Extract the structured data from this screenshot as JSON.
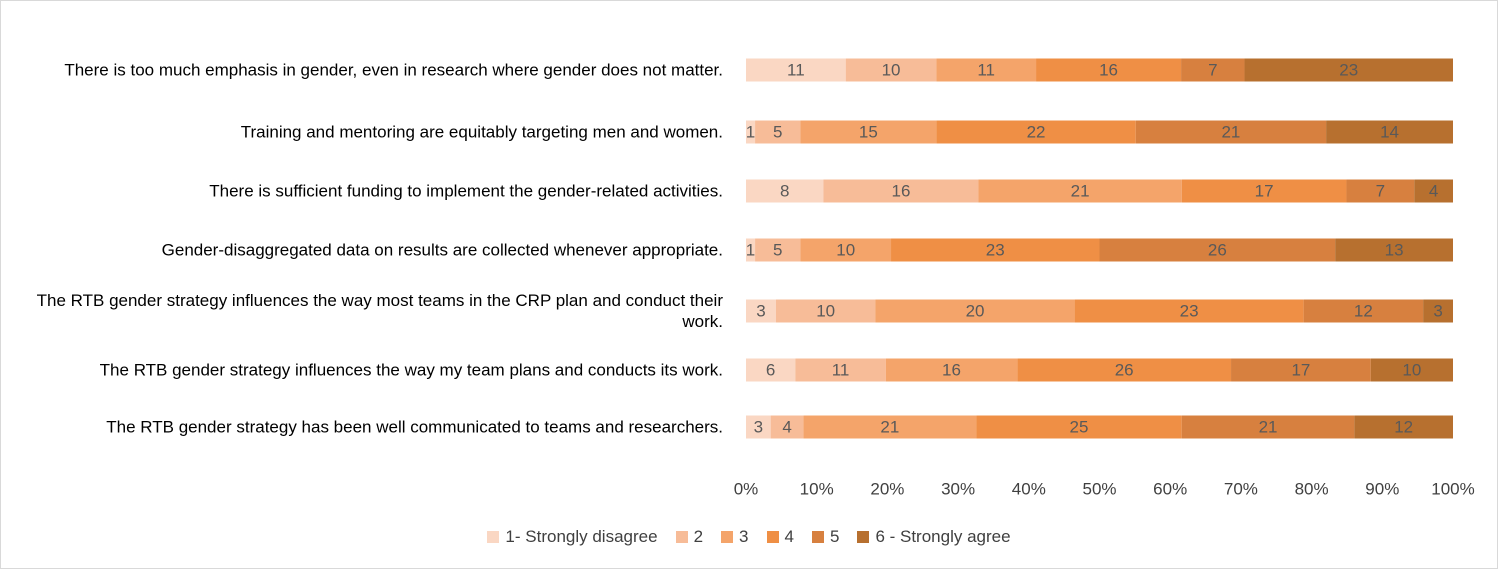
{
  "chart_data": {
    "type": "stacked100_barh",
    "categories": [
      "There is too much emphasis in gender, even in research where gender does not matter.",
      "Training and mentoring are equitably targeting men and women.",
      "There is sufficient funding to implement the gender-related activities.",
      "Gender-disaggregated data on results are collected whenever appropriate.",
      "The RTB gender strategy influences the way most teams in the CRP plan and conduct their work.",
      "The RTB gender strategy influences the way my team plans and conducts its work.",
      "The RTB gender strategy has been well communicated to teams and researchers."
    ],
    "series": [
      {
        "name": "1- Strongly disagree",
        "color": "#fad7c3",
        "values": [
          11,
          1,
          8,
          1,
          3,
          6,
          3
        ]
      },
      {
        "name": "2",
        "color": "#f7bc98",
        "values": [
          10,
          5,
          16,
          5,
          10,
          11,
          4
        ]
      },
      {
        "name": "3",
        "color": "#f4a46a",
        "values": [
          11,
          15,
          21,
          10,
          20,
          16,
          21
        ]
      },
      {
        "name": "4",
        "color": "#ef8f45",
        "values": [
          16,
          22,
          17,
          23,
          23,
          26,
          25
        ]
      },
      {
        "name": "5",
        "color": "#d7803f",
        "values": [
          7,
          21,
          7,
          26,
          12,
          17,
          21
        ]
      },
      {
        "name": "6 - Strongly agree",
        "color": "#b7702f",
        "values": [
          23,
          14,
          4,
          13,
          3,
          10,
          12
        ]
      }
    ],
    "xlim": [
      0,
      100
    ],
    "xticks": [
      {
        "value": 0,
        "label": "0%"
      },
      {
        "value": 10,
        "label": "10%"
      },
      {
        "value": 20,
        "label": "20%"
      },
      {
        "value": 30,
        "label": "30%"
      },
      {
        "value": 40,
        "label": "40%"
      },
      {
        "value": 50,
        "label": "50%"
      },
      {
        "value": 60,
        "label": "60%"
      },
      {
        "value": 70,
        "label": "70%"
      },
      {
        "value": 80,
        "label": "80%"
      },
      {
        "value": 90,
        "label": "90%"
      },
      {
        "value": 100,
        "label": "100%"
      }
    ],
    "legend": "bottom"
  }
}
